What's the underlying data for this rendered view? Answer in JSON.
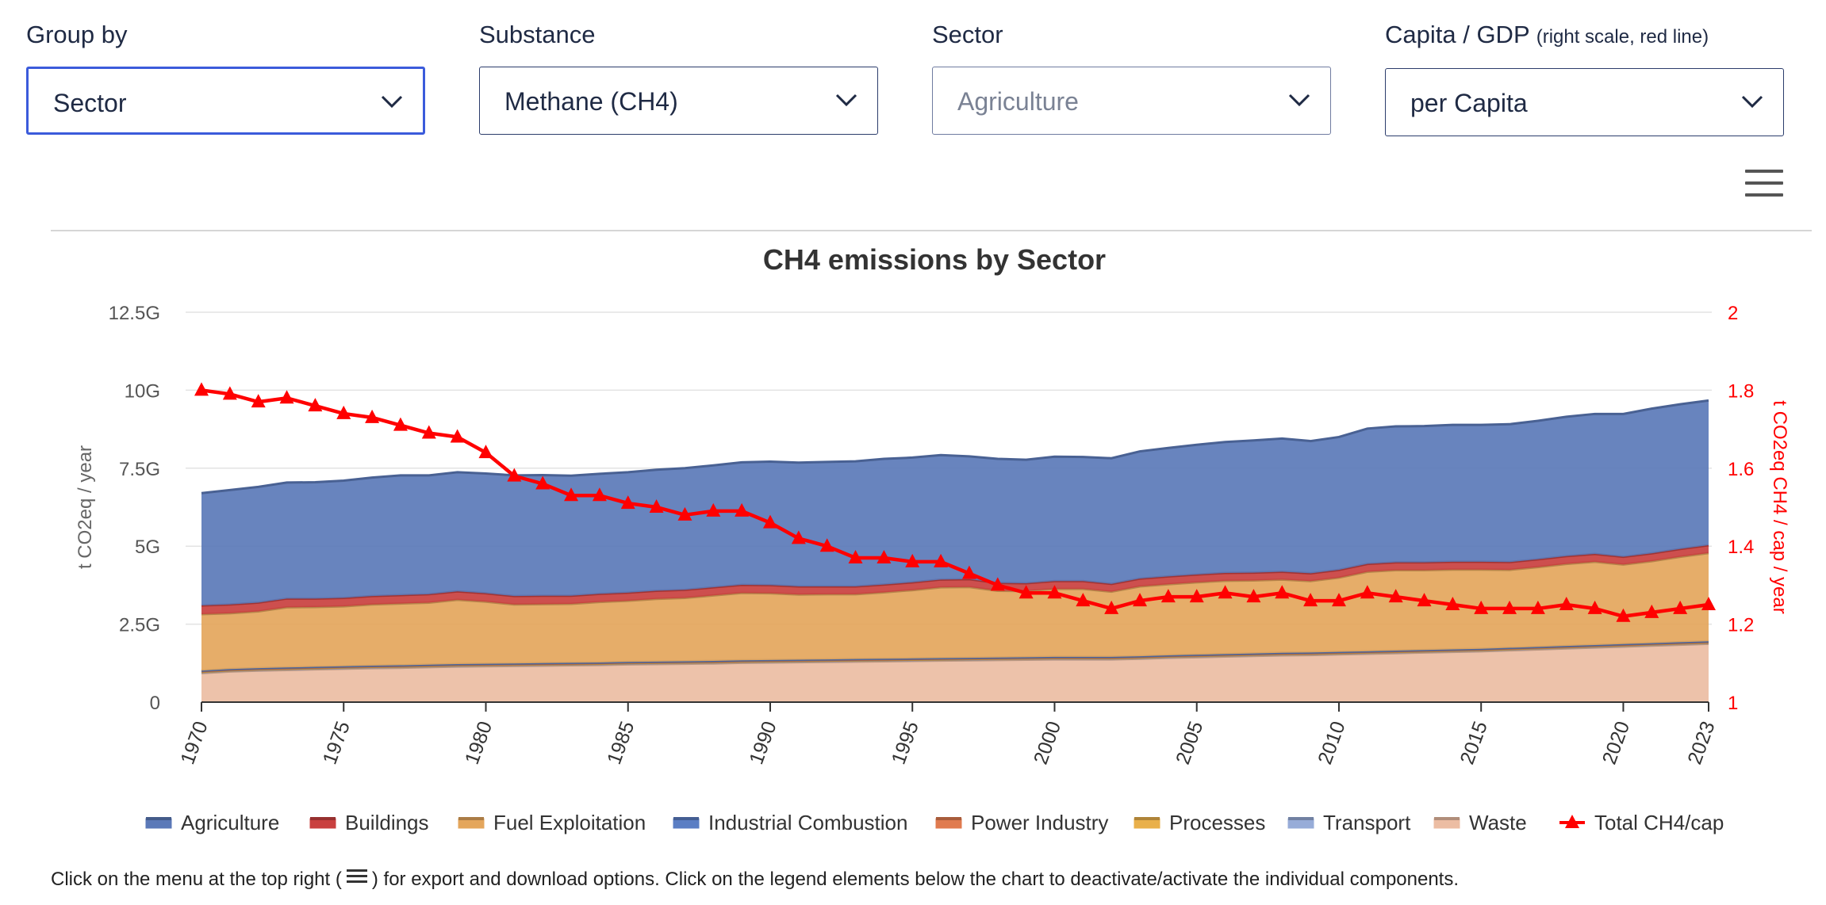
{
  "controls": [
    {
      "label": "Group by",
      "note": "",
      "value": "Sector",
      "state": "focused"
    },
    {
      "label": "Substance",
      "note": "",
      "value": "Methane (CH4)",
      "state": "normal"
    },
    {
      "label": "Sector",
      "note": "",
      "value": "Agriculture",
      "state": "disabled"
    },
    {
      "label": "Capita / GDP",
      "note": "(right scale, red line)",
      "value": "per Capita",
      "state": "normal"
    }
  ],
  "icons": {
    "chevron": "chevron-down-icon",
    "menu": "hamburger-menu-icon",
    "legend_marker": "triangle-icon"
  },
  "footer": {
    "before": "Click on the menu at the top right (",
    "after": ") for export and download options. Click on the legend elements below the chart to deactivate/activate the individual components."
  },
  "chart_data": {
    "type": "area",
    "stacked": true,
    "title": "CH4 emissions by Sector",
    "ylabel": "t CO2eq / year",
    "y2label": "t CO2eq CH4 / cap / year",
    "ylim": [
      0,
      12500000000
    ],
    "y2lim": [
      1,
      2
    ],
    "yticks": [
      "0",
      "2.5G",
      "5G",
      "7.5G",
      "10G",
      "12.5G"
    ],
    "y2ticks": [
      "1",
      "1.2",
      "1.4",
      "1.6",
      "1.8",
      "2"
    ],
    "xticks": [
      "1970",
      "1975",
      "1980",
      "1985",
      "1990",
      "1995",
      "2000",
      "2005",
      "2010",
      "2015",
      "2020",
      "2023"
    ],
    "grid": true,
    "legend_position": "bottom",
    "x": [
      1970,
      1971,
      1972,
      1973,
      1974,
      1975,
      1976,
      1977,
      1978,
      1979,
      1980,
      1981,
      1982,
      1983,
      1984,
      1985,
      1986,
      1987,
      1988,
      1989,
      1990,
      1991,
      1992,
      1993,
      1994,
      1995,
      1996,
      1997,
      1998,
      1999,
      2000,
      2001,
      2002,
      2003,
      2004,
      2005,
      2006,
      2007,
      2008,
      2009,
      2010,
      2011,
      2012,
      2013,
      2014,
      2015,
      2016,
      2017,
      2018,
      2019,
      2020,
      2021,
      2022,
      2023
    ],
    "series": [
      {
        "name": "Waste",
        "color": "#ecbda3",
        "values": [
          0.93,
          0.98,
          1.01,
          1.03,
          1.05,
          1.07,
          1.09,
          1.1,
          1.12,
          1.14,
          1.15,
          1.16,
          1.17,
          1.18,
          1.19,
          1.21,
          1.22,
          1.23,
          1.24,
          1.26,
          1.27,
          1.28,
          1.29,
          1.3,
          1.31,
          1.32,
          1.33,
          1.34,
          1.35,
          1.36,
          1.37,
          1.37,
          1.37,
          1.39,
          1.42,
          1.44,
          1.46,
          1.48,
          1.5,
          1.51,
          1.53,
          1.55,
          1.57,
          1.59,
          1.61,
          1.63,
          1.66,
          1.69,
          1.72,
          1.75,
          1.78,
          1.81,
          1.84,
          1.87
        ]
      },
      {
        "name": "Transport",
        "color": "#97acd8",
        "values": [
          0.03,
          0.03,
          0.03,
          0.03,
          0.03,
          0.03,
          0.03,
          0.03,
          0.03,
          0.03,
          0.03,
          0.03,
          0.03,
          0.03,
          0.03,
          0.03,
          0.03,
          0.03,
          0.03,
          0.03,
          0.03,
          0.03,
          0.03,
          0.03,
          0.03,
          0.03,
          0.03,
          0.03,
          0.03,
          0.03,
          0.03,
          0.03,
          0.03,
          0.03,
          0.03,
          0.03,
          0.03,
          0.03,
          0.03,
          0.03,
          0.03,
          0.03,
          0.03,
          0.03,
          0.03,
          0.03,
          0.03,
          0.03,
          0.03,
          0.03,
          0.03,
          0.03,
          0.03,
          0.03
        ]
      },
      {
        "name": "Processes",
        "color": "#e9b04a",
        "values": [
          0.01,
          0.01,
          0.01,
          0.01,
          0.01,
          0.01,
          0.01,
          0.01,
          0.01,
          0.01,
          0.01,
          0.01,
          0.01,
          0.01,
          0.01,
          0.01,
          0.01,
          0.01,
          0.01,
          0.01,
          0.01,
          0.01,
          0.01,
          0.01,
          0.01,
          0.01,
          0.01,
          0.01,
          0.01,
          0.01,
          0.01,
          0.01,
          0.01,
          0.01,
          0.01,
          0.01,
          0.01,
          0.01,
          0.01,
          0.01,
          0.01,
          0.01,
          0.01,
          0.01,
          0.01,
          0.01,
          0.01,
          0.01,
          0.01,
          0.01,
          0.01,
          0.01,
          0.01,
          0.01
        ]
      },
      {
        "name": "Power Industry",
        "color": "#e07b4f",
        "values": [
          0.02,
          0.02,
          0.02,
          0.02,
          0.02,
          0.02,
          0.02,
          0.02,
          0.02,
          0.02,
          0.02,
          0.02,
          0.02,
          0.02,
          0.02,
          0.02,
          0.02,
          0.02,
          0.02,
          0.02,
          0.02,
          0.02,
          0.02,
          0.02,
          0.02,
          0.02,
          0.02,
          0.02,
          0.02,
          0.02,
          0.02,
          0.02,
          0.02,
          0.02,
          0.02,
          0.02,
          0.02,
          0.02,
          0.02,
          0.02,
          0.02,
          0.02,
          0.02,
          0.02,
          0.02,
          0.02,
          0.02,
          0.02,
          0.02,
          0.02,
          0.02,
          0.02,
          0.02,
          0.02
        ]
      },
      {
        "name": "Industrial Combustion",
        "color": "#5b7ec4",
        "values": [
          0.02,
          0.02,
          0.02,
          0.02,
          0.02,
          0.02,
          0.02,
          0.02,
          0.02,
          0.02,
          0.02,
          0.02,
          0.02,
          0.02,
          0.02,
          0.02,
          0.02,
          0.02,
          0.02,
          0.02,
          0.02,
          0.02,
          0.02,
          0.02,
          0.02,
          0.02,
          0.02,
          0.02,
          0.02,
          0.02,
          0.02,
          0.02,
          0.02,
          0.02,
          0.02,
          0.02,
          0.02,
          0.02,
          0.02,
          0.02,
          0.02,
          0.02,
          0.02,
          0.02,
          0.02,
          0.02,
          0.02,
          0.02,
          0.02,
          0.02,
          0.02,
          0.02,
          0.02,
          0.02
        ]
      },
      {
        "name": "Fuel Exploitation",
        "color": "#e4a65c",
        "values": [
          1.81,
          1.79,
          1.82,
          1.93,
          1.92,
          1.92,
          1.96,
          1.98,
          1.99,
          2.06,
          1.99,
          1.89,
          1.89,
          1.89,
          1.94,
          1.96,
          2.01,
          2.03,
          2.1,
          2.16,
          2.14,
          2.09,
          2.09,
          2.08,
          2.13,
          2.19,
          2.27,
          2.27,
          2.14,
          2.12,
          2.18,
          2.18,
          2.09,
          2.24,
          2.28,
          2.32,
          2.35,
          2.34,
          2.35,
          2.29,
          2.38,
          2.55,
          2.58,
          2.56,
          2.56,
          2.54,
          2.5,
          2.56,
          2.63,
          2.67,
          2.55,
          2.63,
          2.74,
          2.83
        ]
      },
      {
        "name": "Buildings",
        "color": "#c9403f",
        "values": [
          0.28,
          0.28,
          0.28,
          0.28,
          0.27,
          0.27,
          0.27,
          0.27,
          0.27,
          0.27,
          0.27,
          0.27,
          0.27,
          0.26,
          0.26,
          0.26,
          0.26,
          0.26,
          0.26,
          0.26,
          0.26,
          0.26,
          0.25,
          0.25,
          0.25,
          0.25,
          0.25,
          0.25,
          0.25,
          0.25,
          0.25,
          0.25,
          0.25,
          0.25,
          0.25,
          0.25,
          0.25,
          0.25,
          0.25,
          0.25,
          0.25,
          0.25,
          0.25,
          0.25,
          0.25,
          0.25,
          0.25,
          0.25,
          0.25,
          0.25,
          0.25,
          0.25,
          0.25,
          0.25
        ]
      },
      {
        "name": "Agriculture",
        "color": "#5b79b8",
        "values": [
          3.6,
          3.67,
          3.71,
          3.72,
          3.73,
          3.76,
          3.8,
          3.84,
          3.81,
          3.82,
          3.84,
          3.87,
          3.87,
          3.85,
          3.85,
          3.86,
          3.88,
          3.9,
          3.91,
          3.93,
          3.96,
          3.97,
          3.99,
          4.01,
          4.03,
          4.0,
          3.99,
          3.94,
          3.98,
          3.96,
          3.99,
          3.98,
          4.03,
          4.08,
          4.12,
          4.16,
          4.2,
          4.24,
          4.27,
          4.24,
          4.26,
          4.34,
          4.36,
          4.37,
          4.39,
          4.39,
          4.42,
          4.44,
          4.47,
          4.49,
          4.58,
          4.64,
          4.64,
          4.64
        ]
      }
    ],
    "values_unit": "G t CO2eq / year",
    "line_series": {
      "name": "Total CH4/cap",
      "color": "#ff0000",
      "axis": "right",
      "values": [
        1.8,
        1.79,
        1.77,
        1.78,
        1.76,
        1.74,
        1.73,
        1.71,
        1.69,
        1.68,
        1.64,
        1.58,
        1.56,
        1.53,
        1.53,
        1.51,
        1.5,
        1.48,
        1.49,
        1.49,
        1.46,
        1.42,
        1.4,
        1.37,
        1.37,
        1.36,
        1.36,
        1.33,
        1.3,
        1.28,
        1.28,
        1.26,
        1.24,
        1.26,
        1.27,
        1.27,
        1.28,
        1.27,
        1.28,
        1.26,
        1.26,
        1.28,
        1.27,
        1.26,
        1.25,
        1.24,
        1.24,
        1.24,
        1.25,
        1.24,
        1.22,
        1.23,
        1.24,
        1.25
      ]
    },
    "legend": [
      {
        "name": "Agriculture",
        "color": "#5b79b8",
        "marker": "band"
      },
      {
        "name": "Buildings",
        "color": "#c9403f",
        "marker": "band"
      },
      {
        "name": "Fuel Exploitation",
        "color": "#e4a65c",
        "marker": "band"
      },
      {
        "name": "Industrial Combustion",
        "color": "#5b7ec4",
        "marker": "band"
      },
      {
        "name": "Power Industry",
        "color": "#e07b4f",
        "marker": "band"
      },
      {
        "name": "Processes",
        "color": "#e9b04a",
        "marker": "band"
      },
      {
        "name": "Transport",
        "color": "#97acd8",
        "marker": "band"
      },
      {
        "name": "Waste",
        "color": "#ecbda3",
        "marker": "band"
      },
      {
        "name": "Total CH4/cap",
        "color": "#ff0000",
        "marker": "triangle"
      }
    ]
  }
}
